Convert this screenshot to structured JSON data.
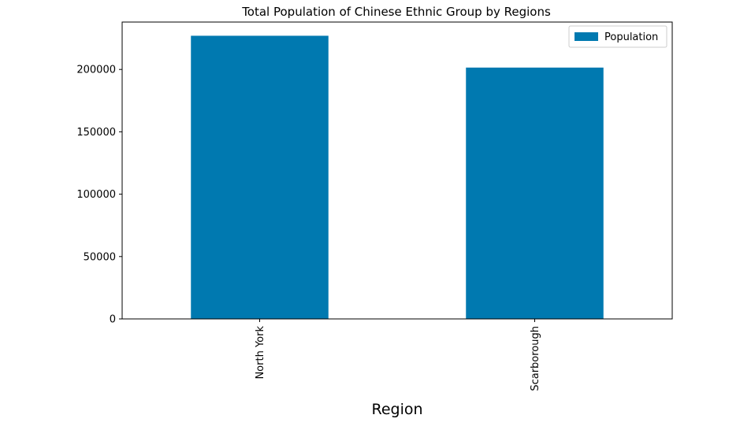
{
  "chart_data": {
    "type": "bar",
    "title": "Total Population of Chinese Ethnic Group by Regions",
    "xlabel": "Region",
    "ylabel": "",
    "categories": [
      "North York",
      "Scarborough"
    ],
    "series": [
      {
        "name": "Population",
        "values": [
          227000,
          201500
        ]
      }
    ],
    "ylim": [
      0,
      238000
    ],
    "yticks": [
      0,
      50000,
      100000,
      150000,
      200000
    ],
    "ytick_labels": [
      "0",
      "50000",
      "100000",
      "150000",
      "200000"
    ],
    "legend": {
      "position": "top-right",
      "entries": [
        "Population"
      ]
    },
    "grid": false,
    "colors": {
      "bar": "#0079b0",
      "axes": "#000000",
      "background": "#ffffff"
    }
  }
}
